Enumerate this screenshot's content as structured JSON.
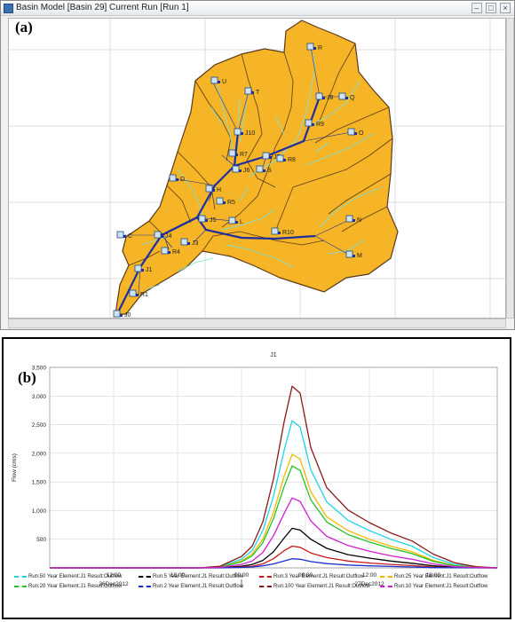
{
  "panel_a": {
    "label": "(a)",
    "window_title": "Basin Model [Basin 29]  Current Run [Run 1]",
    "colors": {
      "basin": "#f5b526",
      "boundary": "#5a3a1a",
      "stream": "#7ee0d8",
      "reach": "#1f2f9c",
      "grid": "#d2d2d2",
      "background": "#ffffff"
    },
    "icons": {
      "node": "subbasin-icon",
      "minimize": "minimize-icon",
      "maximize": "maximize-icon",
      "close": "close-icon"
    },
    "element_labels": [
      "R",
      "U",
      "T",
      "J8",
      "Q",
      "J10",
      "R9",
      "O",
      "R7",
      "S",
      "J7",
      "D",
      "J6",
      "R8",
      "R5",
      "H",
      "L",
      "J5",
      "J4",
      "R10",
      "N",
      "C",
      "R4",
      "J3",
      "M",
      "J1",
      "R1",
      "J0"
    ]
  },
  "panel_b": {
    "label": "(b)",
    "chart_data": {
      "type": "line",
      "title": "J1",
      "ylabel": "Flow (cms)",
      "xlabel": "",
      "ylim": [
        0,
        3500
      ],
      "xlim": [
        -18,
        24
      ],
      "x_unit": "hours relative to 27Dec2012 00:00",
      "yticks": [
        0,
        500,
        1000,
        1500,
        2000,
        2500,
        3000,
        3500
      ],
      "ytick_labels": [
        "",
        "500",
        "1,000",
        "1,500",
        "2,000",
        "2,500",
        "3,000",
        "3,500"
      ],
      "xtick_labels": [
        {
          "hour": -12,
          "label": "12:00"
        },
        {
          "hour": -6,
          "label": "18:00"
        },
        {
          "hour": 0,
          "label": "00:00"
        },
        {
          "hour": 6,
          "label": "06:00"
        },
        {
          "hour": 12,
          "label": "12:00"
        },
        {
          "hour": 18,
          "label": "18:00"
        }
      ],
      "date_labels": [
        {
          "hour": -12,
          "label": "26Dec2012"
        },
        {
          "hour": 12,
          "label": "27Dec2012"
        }
      ],
      "grid": true,
      "legend_position": "bottom",
      "x": [
        -18,
        -4,
        -2,
        0,
        1,
        2,
        3,
        4,
        4.75,
        5.5,
        6.5,
        8,
        10,
        12,
        14,
        16,
        18,
        20,
        22,
        24
      ],
      "series": [
        {
          "name": "Run:50 Year Element:J1 Result:Outflow",
          "color": "#22d3e8",
          "values": [
            0,
            0,
            20,
            150,
            300,
            650,
            1250,
            2050,
            2570,
            2460,
            1710,
            1150,
            830,
            650,
            500,
            380,
            180,
            60,
            15,
            0
          ]
        },
        {
          "name": "Run:5 Year Element:J1 Result:Outflow",
          "color": "#000000",
          "values": [
            0,
            0,
            5,
            30,
            60,
            130,
            280,
            520,
            690,
            660,
            500,
            340,
            230,
            170,
            120,
            80,
            35,
            10,
            3,
            0
          ]
        },
        {
          "name": "Run:3 Year Element:J1 Result:Outflow",
          "color": "#c41a1a",
          "values": [
            0,
            0,
            2,
            15,
            30,
            70,
            160,
            300,
            380,
            360,
            260,
            180,
            120,
            85,
            60,
            40,
            15,
            5,
            1,
            0
          ]
        },
        {
          "name": "Run:25 Year Element:J1 Result:Outflow",
          "color": "#f2b900",
          "values": [
            0,
            0,
            15,
            120,
            240,
            500,
            970,
            1600,
            1980,
            1900,
            1330,
            890,
            650,
            500,
            380,
            280,
            130,
            40,
            10,
            0
          ]
        },
        {
          "name": "Run:20 Year Element:J1 Result:Outflow",
          "color": "#22c22a",
          "values": [
            0,
            0,
            12,
            105,
            210,
            440,
            860,
            1420,
            1780,
            1700,
            1190,
            800,
            580,
            450,
            340,
            250,
            115,
            35,
            8,
            0
          ]
        },
        {
          "name": "Run:2 Year Element:J1 Result:Outflow",
          "color": "#1a2fd0",
          "values": [
            0,
            0,
            0,
            8,
            15,
            35,
            70,
            120,
            160,
            150,
            110,
            75,
            50,
            35,
            25,
            15,
            5,
            2,
            0,
            0
          ]
        },
        {
          "name": "Run:100 Year Element:J1 Result:Outflow",
          "color": "#8a1a1a",
          "values": [
            0,
            0,
            30,
            200,
            380,
            800,
            1550,
            2550,
            3170,
            3050,
            2100,
            1400,
            1010,
            790,
            610,
            470,
            240,
            90,
            20,
            0
          ]
        },
        {
          "name": "Run:10 Year Element:J1 Result:Outflow",
          "color": "#d21fd2",
          "values": [
            0,
            0,
            8,
            60,
            120,
            270,
            560,
            950,
            1220,
            1160,
            820,
            550,
            390,
            290,
            210,
            150,
            70,
            20,
            5,
            0
          ]
        }
      ]
    }
  }
}
